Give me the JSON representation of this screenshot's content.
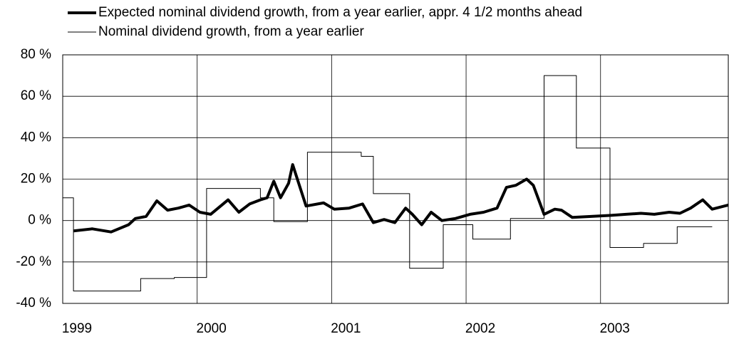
{
  "chart_data": {
    "type": "line",
    "xlim": [
      1999,
      2003.95
    ],
    "xticks": [
      1999,
      2000,
      2001,
      2002,
      2003
    ],
    "ylim": [
      -40,
      80
    ],
    "yticks": [
      {
        "value": 80,
        "label": "80 %"
      },
      {
        "value": 60,
        "label": "60 %"
      },
      {
        "value": 40,
        "label": "40 %"
      },
      {
        "value": 20,
        "label": "20 %"
      },
      {
        "value": 0,
        "label": "0 %"
      },
      {
        "value": -20,
        "label": "-20 %"
      },
      {
        "value": -40,
        "label": "-40 %"
      }
    ],
    "grid": true,
    "legend": "top",
    "series": [
      {
        "name": "Expected nominal dividend growth, from a year earlier, appr. 4 1/2 months ahead",
        "color": "#000000",
        "width": 4,
        "x": [
          1999.08,
          1999.22,
          1999.36,
          1999.49,
          1999.54,
          1999.62,
          1999.7,
          1999.78,
          1999.86,
          1999.94,
          2000.02,
          2000.1,
          2000.23,
          2000.31,
          2000.39,
          2000.47,
          2000.52,
          2000.57,
          2000.62,
          2000.68,
          2000.71,
          2000.75,
          2000.81,
          2000.94,
          2001.02,
          2001.13,
          2001.23,
          2001.31,
          2001.39,
          2001.47,
          2001.55,
          2001.6,
          2001.67,
          2001.74,
          2001.82,
          2001.92,
          2002.03,
          2002.13,
          2002.23,
          2002.3,
          2002.37,
          2002.45,
          2002.5,
          2002.58,
          2002.66,
          2002.71,
          2002.79,
          2002.93,
          2003.08,
          2003.19,
          2003.3,
          2003.4,
          2003.51,
          2003.59,
          2003.67,
          2003.76,
          2003.83,
          2003.95
        ],
        "values": [
          -5,
          -4,
          -5.5,
          -2,
          1,
          2,
          9.5,
          5,
          6,
          7.5,
          4,
          3,
          10,
          4,
          8,
          10,
          11,
          19,
          11,
          18,
          27,
          19,
          7,
          8.5,
          5.5,
          6,
          8,
          -1,
          0.5,
          -1,
          6,
          3,
          -2,
          4,
          0,
          1,
          3,
          4,
          6,
          16,
          17,
          20,
          17,
          3,
          5.5,
          5,
          1.5,
          2,
          2.5,
          3,
          3.5,
          3,
          4,
          3.5,
          6,
          10,
          5.5,
          7.5
        ]
      },
      {
        "name": "Nominal dividend growth, from a year earlier",
        "color": "#000000",
        "width": 1,
        "x": [
          1999.0,
          1999.08,
          1999.08,
          1999.58,
          1999.58,
          1999.83,
          1999.83,
          2000.07,
          2000.07,
          2000.47,
          2000.47,
          2000.57,
          2000.57,
          2000.82,
          2000.82,
          2001.22,
          2001.22,
          2001.31,
          2001.31,
          2001.58,
          2001.58,
          2001.83,
          2001.83,
          2002.05,
          2002.05,
          2002.33,
          2002.33,
          2002.58,
          2002.58,
          2002.82,
          2002.82,
          2003.07,
          2003.07,
          2003.32,
          2003.32,
          2003.57,
          2003.57,
          2003.83
        ],
        "values": [
          11,
          11,
          -34,
          -34,
          -28,
          -28,
          -27.5,
          -27.5,
          15.5,
          15.5,
          11,
          11,
          -0.5,
          -0.5,
          33,
          33,
          31,
          31,
          13,
          13,
          -23,
          -23,
          -2,
          -2,
          -9,
          -9,
          1,
          1,
          70,
          70,
          35,
          35,
          -13,
          -13,
          -11,
          -11,
          -3,
          -3
        ]
      }
    ]
  }
}
